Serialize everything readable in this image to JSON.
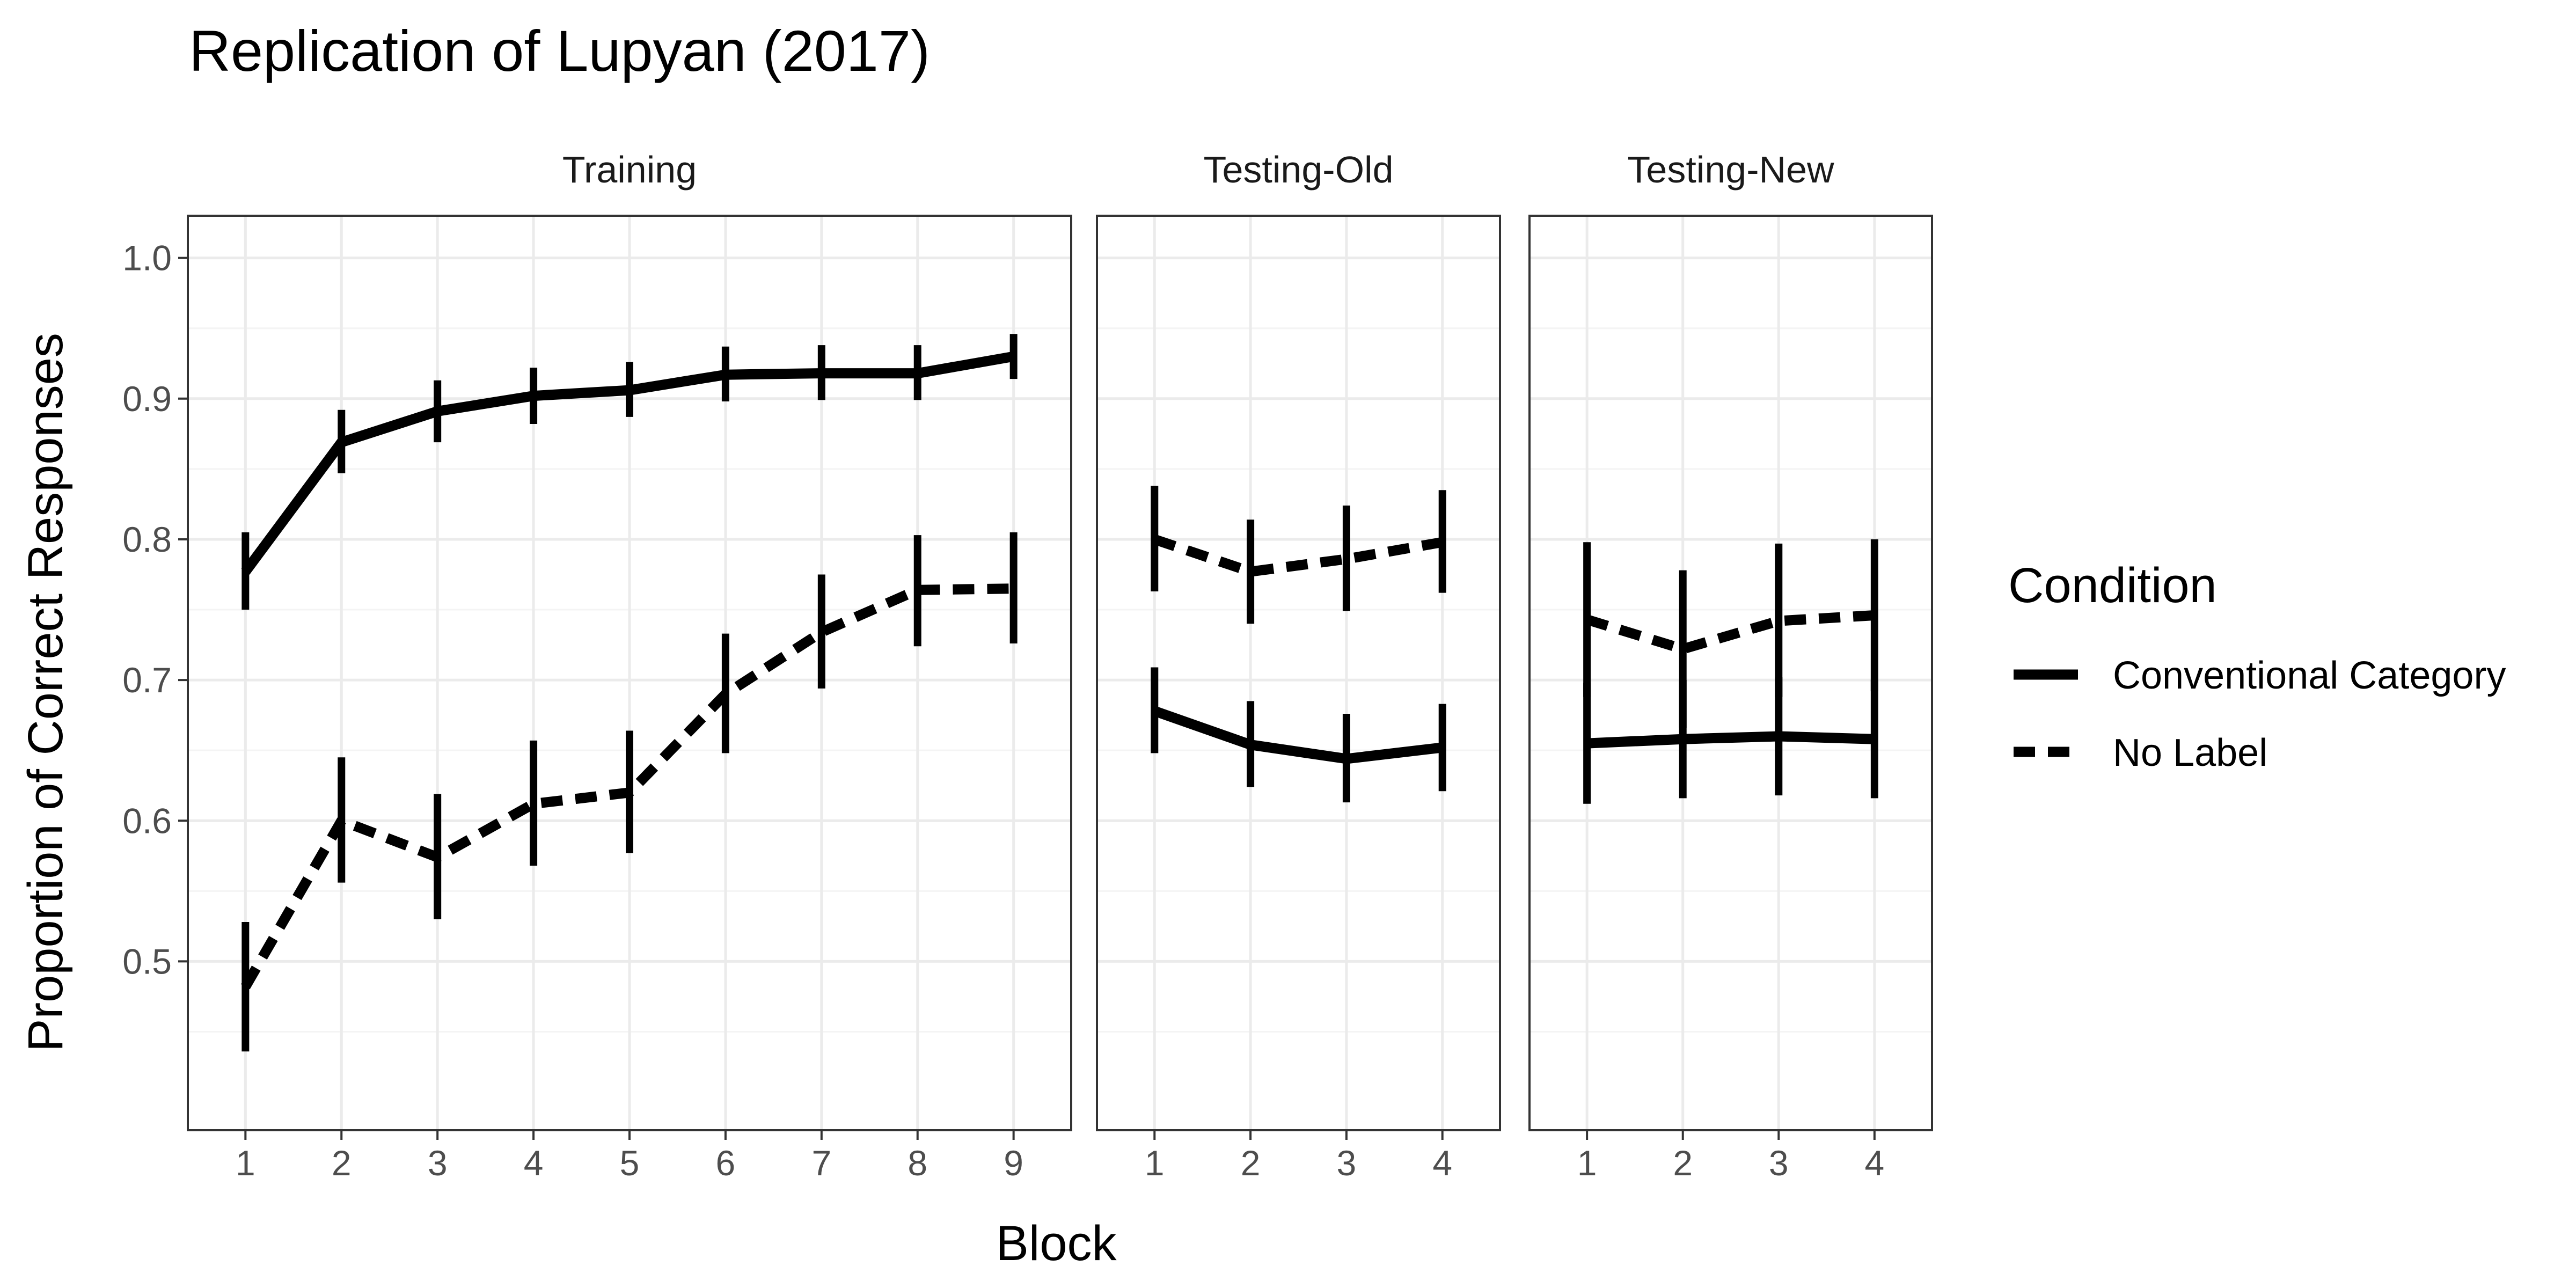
{
  "chart_data": {
    "type": "line",
    "title": "Replication of Lupyan (2017)",
    "xlabel": "Block",
    "ylabel": "Proportion of Correct Responses",
    "ylim": [
      0.38,
      1.03
    ],
    "yticks": [
      "0.5",
      "0.6",
      "0.7",
      "0.8",
      "0.9",
      "1.0"
    ],
    "grid": true,
    "legend": {
      "title": "Condition",
      "position": "right",
      "entries": [
        {
          "name": "Conventional Category",
          "linetype": "solid"
        },
        {
          "name": "No Label",
          "linetype": "dashed"
        }
      ]
    },
    "panels": [
      {
        "name": "Training",
        "x": [
          1,
          2,
          3,
          4,
          5,
          6,
          7,
          8,
          9
        ],
        "series": [
          {
            "name": "Conventional Category",
            "values": [
              0.777,
              0.869,
              0.891,
              0.902,
              0.906,
              0.917,
              0.918,
              0.918,
              0.93
            ],
            "lower": [
              0.75,
              0.847,
              0.869,
              0.882,
              0.887,
              0.898,
              0.899,
              0.899,
              0.914
            ],
            "upper": [
              0.805,
              0.892,
              0.913,
              0.922,
              0.926,
              0.937,
              0.938,
              0.938,
              0.946
            ]
          },
          {
            "name": "No Label",
            "values": [
              0.482,
              0.6,
              0.574,
              0.612,
              0.62,
              0.69,
              0.734,
              0.764,
              0.765
            ],
            "lower": [
              0.436,
              0.556,
              0.53,
              0.568,
              0.577,
              0.648,
              0.694,
              0.724,
              0.726
            ],
            "upper": [
              0.528,
              0.645,
              0.619,
              0.657,
              0.664,
              0.733,
              0.775,
              0.803,
              0.805
            ]
          }
        ]
      },
      {
        "name": "Testing-Old",
        "x": [
          1,
          2,
          3,
          4
        ],
        "series": [
          {
            "name": "Conventional Category",
            "values": [
              0.678,
              0.654,
              0.644,
              0.652
            ],
            "lower": [
              0.648,
              0.624,
              0.613,
              0.621
            ],
            "upper": [
              0.709,
              0.685,
              0.676,
              0.683
            ]
          },
          {
            "name": "No Label",
            "values": [
              0.8,
              0.777,
              0.786,
              0.798
            ],
            "lower": [
              0.763,
              0.74,
              0.749,
              0.762
            ],
            "upper": [
              0.838,
              0.814,
              0.824,
              0.835
            ]
          }
        ]
      },
      {
        "name": "Testing-New",
        "x": [
          1,
          2,
          3,
          4
        ],
        "series": [
          {
            "name": "Conventional Category",
            "values": [
              0.655,
              0.658,
              0.66,
              0.658
            ],
            "lower": [
              0.612,
              0.616,
              0.618,
              0.616
            ],
            "upper": [
              0.698,
              0.7,
              0.702,
              0.7
            ]
          },
          {
            "name": "No Label",
            "values": [
              0.743,
              0.722,
              0.742,
              0.746
            ],
            "lower": [
              0.688,
              0.666,
              0.688,
              0.692
            ],
            "upper": [
              0.798,
              0.778,
              0.797,
              0.8
            ]
          }
        ]
      }
    ]
  }
}
